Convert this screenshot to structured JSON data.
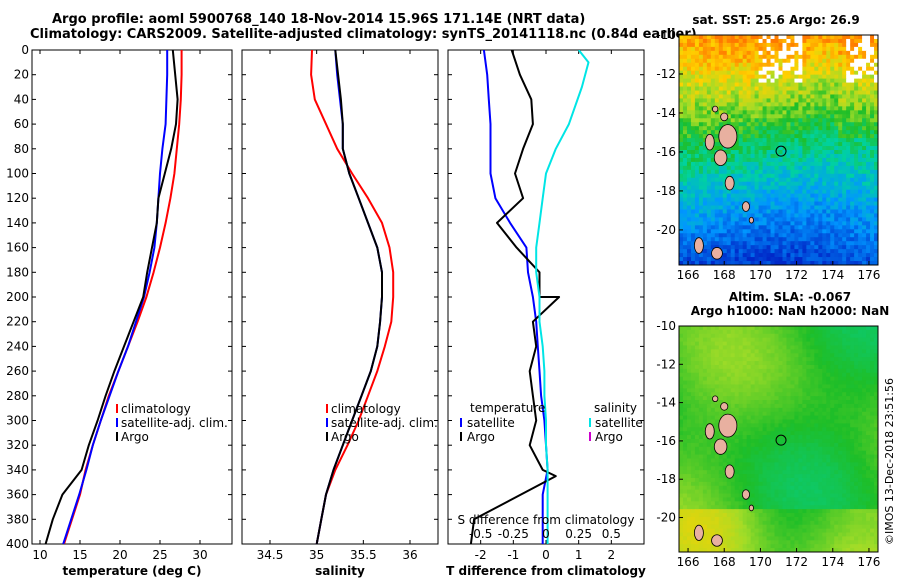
{
  "header": {
    "line1": "Argo profile: aoml 5900768_140 18-Nov-2014 15.96S 171.14E (NRT data)",
    "line2": "Climatology: CARS2009. Satellite-adjusted climatology: synTS_20141118.nc (0.84d earlier)"
  },
  "side_stamp": "©IMOS 13-Dec-2018 23:51:56",
  "colors": {
    "climatology": "#ff0000",
    "satellite": "#0000ff",
    "argo": "#000000",
    "satellite_diff": "#00e5e5",
    "argo_diff": "#cc00cc"
  },
  "chart_data": [
    {
      "type": "line",
      "name": "temperature-profile",
      "xlabel": "temperature (deg C)",
      "ylabel": "",
      "xlim": [
        9,
        34
      ],
      "ylim": [
        400,
        0
      ],
      "xticks": [
        10,
        15,
        20,
        25,
        30
      ],
      "yticks": [
        0,
        20,
        40,
        60,
        80,
        100,
        120,
        140,
        160,
        180,
        200,
        220,
        240,
        260,
        280,
        300,
        320,
        340,
        360,
        380,
        400
      ],
      "legend": [
        "climatology",
        "satellite-adj. clim.",
        "Argo"
      ],
      "series": [
        {
          "name": "climatology",
          "color": "#ff0000",
          "points": [
            [
              27.7,
              0
            ],
            [
              27.7,
              20
            ],
            [
              27.6,
              40
            ],
            [
              27.4,
              60
            ],
            [
              27.1,
              80
            ],
            [
              26.8,
              100
            ],
            [
              26.3,
              120
            ],
            [
              25.7,
              140
            ],
            [
              25.0,
              160
            ],
            [
              24.2,
              180
            ],
            [
              23.3,
              200
            ],
            [
              22.2,
              220
            ],
            [
              21.0,
              240
            ],
            [
              19.8,
              260
            ],
            [
              18.6,
              280
            ],
            [
              17.6,
              300
            ],
            [
              16.6,
              320
            ],
            [
              15.7,
              340
            ],
            [
              15.0,
              360
            ],
            [
              14.0,
              380
            ],
            [
              13.0,
              400
            ]
          ]
        },
        {
          "name": "satellite-adj. clim.",
          "color": "#0000ff",
          "points": [
            [
              25.9,
              0
            ],
            [
              25.9,
              20
            ],
            [
              25.8,
              40
            ],
            [
              25.7,
              60
            ],
            [
              25.3,
              80
            ],
            [
              25.0,
              100
            ],
            [
              24.8,
              120
            ],
            [
              24.6,
              140
            ],
            [
              24.3,
              160
            ],
            [
              23.7,
              180
            ],
            [
              23.0,
              200
            ],
            [
              22.0,
              220
            ],
            [
              21.0,
              240
            ],
            [
              19.8,
              260
            ],
            [
              18.7,
              280
            ],
            [
              17.6,
              300
            ],
            [
              16.6,
              320
            ],
            [
              15.8,
              340
            ],
            [
              14.9,
              360
            ],
            [
              13.9,
              380
            ],
            [
              12.9,
              400
            ]
          ]
        },
        {
          "name": "Argo",
          "color": "#000000",
          "points": [
            [
              26.6,
              0
            ],
            [
              26.9,
              20
            ],
            [
              27.2,
              40
            ],
            [
              27.0,
              60
            ],
            [
              26.4,
              80
            ],
            [
              25.6,
              100
            ],
            [
              24.8,
              120
            ],
            [
              24.6,
              140
            ],
            [
              24.0,
              160
            ],
            [
              23.4,
              180
            ],
            [
              22.9,
              200
            ],
            [
              21.7,
              220
            ],
            [
              20.5,
              240
            ],
            [
              19.3,
              260
            ],
            [
              18.2,
              280
            ],
            [
              17.2,
              300
            ],
            [
              16.1,
              320
            ],
            [
              15.2,
              340
            ],
            [
              12.8,
              360
            ],
            [
              11.6,
              380
            ],
            [
              10.7,
              400
            ]
          ]
        }
      ]
    },
    {
      "type": "line",
      "name": "salinity-profile",
      "xlabel": "salinity",
      "ylabel": "",
      "xlim": [
        34.2,
        36.3
      ],
      "ylim": [
        400,
        0
      ],
      "xticks": [
        34.5,
        35,
        35.5,
        36
      ],
      "legend": [
        "climatology",
        "satellite-adj. clim.",
        "Argo"
      ],
      "series": [
        {
          "name": "climatology",
          "color": "#ff0000",
          "points": [
            [
              34.95,
              0
            ],
            [
              34.94,
              20
            ],
            [
              34.98,
              40
            ],
            [
              35.1,
              60
            ],
            [
              35.22,
              80
            ],
            [
              35.38,
              100
            ],
            [
              35.55,
              120
            ],
            [
              35.7,
              140
            ],
            [
              35.78,
              160
            ],
            [
              35.82,
              180
            ],
            [
              35.82,
              200
            ],
            [
              35.8,
              220
            ],
            [
              35.73,
              240
            ],
            [
              35.65,
              260
            ],
            [
              35.55,
              280
            ],
            [
              35.45,
              300
            ],
            [
              35.33,
              320
            ],
            [
              35.2,
              340
            ],
            [
              35.1,
              360
            ],
            [
              35.05,
              380
            ],
            [
              35.0,
              400
            ]
          ]
        },
        {
          "name": "satellite-adj. clim.",
          "color": "#0000ff",
          "points": [
            [
              35.2,
              0
            ],
            [
              35.22,
              20
            ],
            [
              35.25,
              40
            ],
            [
              35.28,
              60
            ],
            [
              35.28,
              80
            ],
            [
              35.35,
              100
            ],
            [
              35.45,
              120
            ],
            [
              35.55,
              140
            ],
            [
              35.65,
              160
            ],
            [
              35.7,
              180
            ],
            [
              35.7,
              200
            ],
            [
              35.68,
              220
            ],
            [
              35.65,
              240
            ],
            [
              35.58,
              260
            ],
            [
              35.48,
              280
            ],
            [
              35.38,
              300
            ],
            [
              35.28,
              320
            ],
            [
              35.18,
              340
            ],
            [
              35.1,
              360
            ],
            [
              35.05,
              380
            ],
            [
              35.0,
              400
            ]
          ]
        },
        {
          "name": "Argo",
          "color": "#000000",
          "points": [
            [
              35.2,
              0
            ],
            [
              35.23,
              20
            ],
            [
              35.26,
              40
            ],
            [
              35.28,
              60
            ],
            [
              35.28,
              80
            ],
            [
              35.35,
              100
            ],
            [
              35.45,
              120
            ],
            [
              35.55,
              140
            ],
            [
              35.65,
              160
            ],
            [
              35.7,
              180
            ],
            [
              35.7,
              200
            ],
            [
              35.68,
              220
            ],
            [
              35.65,
              240
            ],
            [
              35.58,
              260
            ],
            [
              35.48,
              280
            ],
            [
              35.38,
              300
            ],
            [
              35.28,
              320
            ],
            [
              35.18,
              340
            ],
            [
              35.1,
              360
            ],
            [
              35.05,
              380
            ],
            [
              35.0,
              400
            ]
          ]
        }
      ]
    },
    {
      "type": "line",
      "name": "difference-profile",
      "xlabel": "T difference from climatology",
      "xlabel_top": "S difference from climatology",
      "xlim": [
        -3,
        3
      ],
      "ylim": [
        400,
        0
      ],
      "xticks": [
        -2,
        -1,
        0,
        1,
        2
      ],
      "top_ticks": [
        "-0.5",
        "-0.25",
        "0",
        "0.25",
        "0.5"
      ],
      "top_tick_values": [
        -2,
        -1,
        0,
        1,
        2
      ],
      "legend_left_title": "temperature",
      "legend_right_title": "salinity",
      "legend_left": [
        "satellite",
        "Argo"
      ],
      "legend_right": [
        "satellite",
        "Argo"
      ],
      "series": [
        {
          "name": "T satellite",
          "color": "#0000ff",
          "points": [
            [
              -1.9,
              0
            ],
            [
              -1.8,
              20
            ],
            [
              -1.75,
              40
            ],
            [
              -1.7,
              60
            ],
            [
              -1.7,
              80
            ],
            [
              -1.7,
              100
            ],
            [
              -1.55,
              120
            ],
            [
              -1.1,
              140
            ],
            [
              -0.6,
              160
            ],
            [
              -0.55,
              180
            ],
            [
              -0.4,
              200
            ],
            [
              -0.3,
              220
            ],
            [
              -0.25,
              240
            ],
            [
              -0.2,
              260
            ],
            [
              -0.15,
              280
            ],
            [
              -0.05,
              300
            ],
            [
              0.0,
              320
            ],
            [
              0.05,
              340
            ],
            [
              -0.1,
              360
            ],
            [
              -0.1,
              380
            ],
            [
              -0.1,
              400
            ]
          ]
        },
        {
          "name": "T Argo",
          "color": "#000000",
          "points": [
            [
              -1.05,
              0
            ],
            [
              -0.8,
              20
            ],
            [
              -0.45,
              40
            ],
            [
              -0.4,
              60
            ],
            [
              -0.7,
              80
            ],
            [
              -0.95,
              100
            ],
            [
              -0.7,
              120
            ],
            [
              -1.5,
              140
            ],
            [
              -0.9,
              160
            ],
            [
              -0.2,
              180
            ],
            [
              -0.2,
              200
            ],
            [
              0.4,
              200
            ],
            [
              -0.4,
              220
            ],
            [
              -0.3,
              240
            ],
            [
              -0.5,
              260
            ],
            [
              -0.4,
              280
            ],
            [
              -0.3,
              300
            ],
            [
              -0.5,
              320
            ],
            [
              -0.1,
              340
            ],
            [
              0.3,
              345
            ],
            [
              -2.2,
              380
            ],
            [
              -2.3,
              400
            ]
          ]
        },
        {
          "name": "S satellite",
          "color": "#00e5e5",
          "points": [
            [
              1.0,
              0
            ],
            [
              1.3,
              10
            ],
            [
              1.1,
              30
            ],
            [
              0.7,
              60
            ],
            [
              0.3,
              80
            ],
            [
              0.0,
              100
            ],
            [
              -0.1,
              120
            ],
            [
              -0.2,
              140
            ],
            [
              -0.3,
              160
            ],
            [
              -0.3,
              180
            ],
            [
              -0.2,
              200
            ],
            [
              -0.2,
              220
            ],
            [
              -0.1,
              240
            ],
            [
              -0.05,
              260
            ],
            [
              -0.05,
              280
            ],
            [
              0.0,
              300
            ],
            [
              0.0,
              320
            ],
            [
              0.05,
              340
            ],
            [
              0.05,
              360
            ],
            [
              0.05,
              380
            ],
            [
              0.05,
              400
            ]
          ]
        }
      ]
    },
    {
      "type": "heatmap",
      "name": "sst-map",
      "title": "sat. SST: 25.6 Argo: 26.9",
      "xlim": [
        165.5,
        176.5
      ],
      "ylim": [
        -21.8,
        -10
      ],
      "xticks": [
        166,
        168,
        170,
        172,
        174,
        176
      ],
      "yticks": [
        -10,
        -12,
        -14,
        -16,
        -18,
        -20
      ],
      "marker": {
        "lon": 171.14,
        "lat": -15.96
      }
    },
    {
      "type": "heatmap",
      "name": "sla-map",
      "title_line1": "Altim. SLA: -0.067",
      "title_line2": "Argo h1000: NaN h2000: NaN",
      "xlim": [
        165.5,
        176.5
      ],
      "ylim": [
        -21.8,
        -10
      ],
      "xticks": [
        166,
        168,
        170,
        172,
        174,
        176
      ],
      "yticks": [
        -10,
        -12,
        -14,
        -16,
        -18,
        -20
      ],
      "marker": {
        "lon": 171.14,
        "lat": -15.96
      }
    }
  ]
}
